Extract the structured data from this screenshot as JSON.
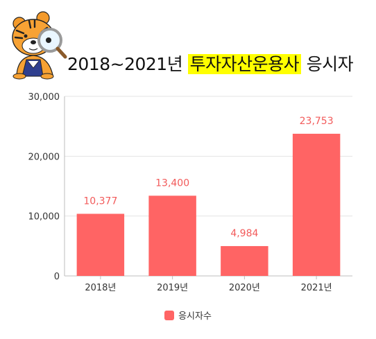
{
  "title": {
    "prefix": "2018~2021년",
    "highlight": "투자자산운용사",
    "suffix": "응시자"
  },
  "mascot": {
    "icon": "tiger-with-magnifier-icon"
  },
  "colors": {
    "bar": "#ff6464",
    "label": "#f25a5a",
    "highlight": "#ffff00"
  },
  "chart_data": {
    "type": "bar",
    "categories": [
      "2018년",
      "2019년",
      "2020년",
      "2021년"
    ],
    "series": [
      {
        "name": "응시자수",
        "values": [
          10377,
          13400,
          4984,
          23753
        ]
      }
    ],
    "value_labels": [
      "10,377",
      "13,400",
      "4,984",
      "23,753"
    ],
    "y_ticks": [
      "0",
      "10,000",
      "20,000",
      "30,000"
    ],
    "y_tick_values": [
      0,
      10000,
      20000,
      30000
    ],
    "ylim": [
      0,
      30000
    ],
    "grid": true,
    "legend": "bottom-center"
  }
}
